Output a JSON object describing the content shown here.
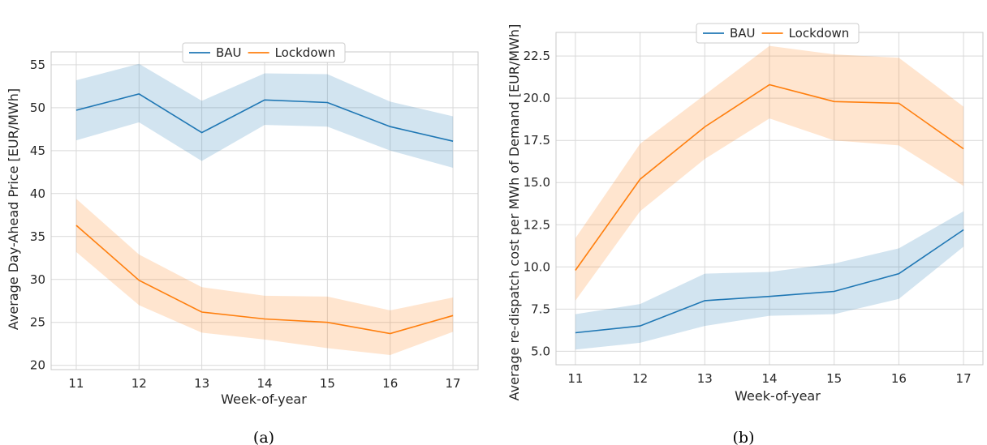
{
  "colors": {
    "BAU": "#1f77b4",
    "Lockdown": "#ff7f0e"
  },
  "chart_data": [
    {
      "type": "line",
      "caption": "(a)",
      "xlabel": "Week-of-year",
      "ylabel": "Average Day-Ahead Price [EUR/MWh]",
      "x": [
        11,
        12,
        13,
        14,
        15,
        16,
        17
      ],
      "xlim": [
        10.6,
        17.4
      ],
      "ylim": [
        19.5,
        56.5
      ],
      "xticks": [
        "11",
        "12",
        "13",
        "14",
        "15",
        "16",
        "17"
      ],
      "yticks": [
        "20",
        "25",
        "30",
        "35",
        "40",
        "45",
        "50",
        "55"
      ],
      "grid": true,
      "legend": "top-center",
      "series": [
        {
          "name": "BAU",
          "values": [
            49.7,
            51.6,
            47.1,
            50.9,
            50.6,
            47.8,
            46.1
          ],
          "lower": [
            46.2,
            48.3,
            43.8,
            48.0,
            47.8,
            45.0,
            43.0
          ],
          "upper": [
            53.2,
            55.1,
            50.8,
            54.0,
            53.9,
            50.7,
            49.0
          ]
        },
        {
          "name": "Lockdown",
          "values": [
            36.3,
            29.9,
            26.2,
            25.4,
            25.0,
            23.7,
            25.8
          ],
          "lower": [
            33.2,
            27.0,
            23.8,
            23.0,
            22.0,
            21.2,
            23.9
          ],
          "upper": [
            39.4,
            32.9,
            29.1,
            28.1,
            28.0,
            26.4,
            27.9
          ]
        }
      ]
    },
    {
      "type": "line",
      "caption": "(b)",
      "xlabel": "Week-of-year",
      "ylabel": "Average re-dispatch cost per MWh of Demand [EUR/MWh]",
      "x": [
        11,
        12,
        13,
        14,
        15,
        16,
        17
      ],
      "xlim": [
        10.7,
        17.3
      ],
      "ylim": [
        4.2,
        23.9
      ],
      "xticks": [
        "11",
        "12",
        "13",
        "14",
        "15",
        "16",
        "17"
      ],
      "yticks": [
        "5.0",
        "7.5",
        "10.0",
        "12.5",
        "15.0",
        "17.5",
        "20.0",
        "22.5"
      ],
      "grid": true,
      "legend": "top-center",
      "series": [
        {
          "name": "BAU",
          "values": [
            6.1,
            6.5,
            8.0,
            8.25,
            8.55,
            9.6,
            12.2
          ],
          "lower": [
            5.1,
            5.5,
            6.5,
            7.1,
            7.2,
            8.1,
            11.2
          ],
          "upper": [
            7.2,
            7.8,
            9.6,
            9.7,
            10.2,
            11.1,
            13.3
          ]
        },
        {
          "name": "Lockdown",
          "values": [
            9.8,
            15.2,
            18.3,
            20.8,
            19.8,
            19.7,
            17.0
          ],
          "lower": [
            8.0,
            13.3,
            16.4,
            18.8,
            17.5,
            17.2,
            14.8
          ],
          "upper": [
            11.7,
            17.3,
            20.2,
            23.1,
            22.6,
            22.4,
            19.5
          ]
        }
      ]
    }
  ]
}
